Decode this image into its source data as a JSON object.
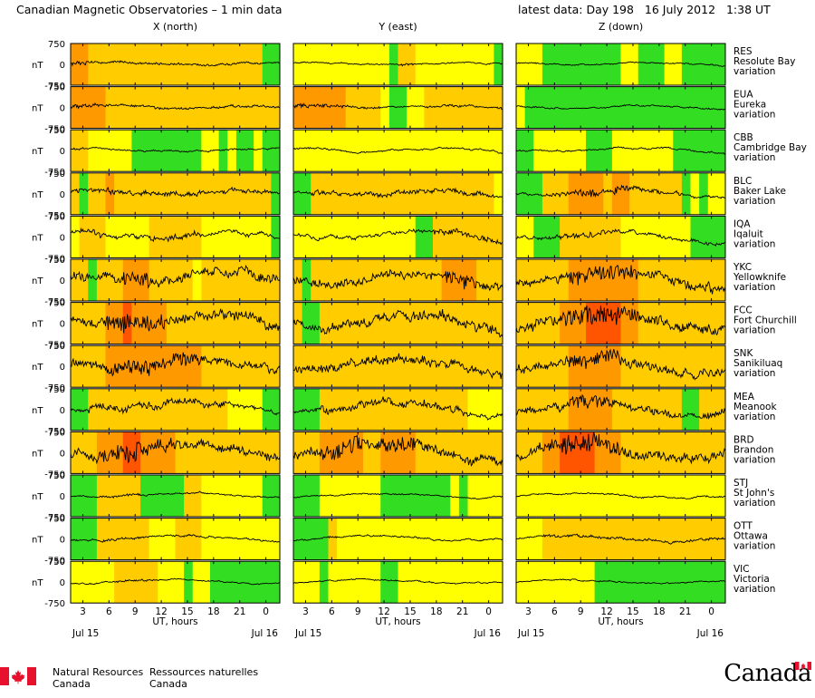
{
  "header": {
    "title": "Canadian Magnetic Observatories – 1 min data",
    "latest": "latest data: Day 198   16 July 2012   1:38 UT"
  },
  "footer": {
    "org_en_line1": "Natural Resources",
    "org_en_line2": "Canada",
    "org_fr_line1": "Ressources naturelles",
    "org_fr_line2": "Canada",
    "wordmark": "Canada"
  },
  "chart_data": {
    "type": "line",
    "columns": [
      {
        "key": "x",
        "label": "X (north)"
      },
      {
        "key": "y",
        "label": "Y (east)"
      },
      {
        "key": "z",
        "label": "Z (down)"
      }
    ],
    "ylabel": "nT",
    "y_ticks": [
      "750",
      "0",
      "-750"
    ],
    "ylim": [
      -750,
      750
    ],
    "xlabel": "UT, hours",
    "x_ticks": [
      "3",
      "6",
      "9",
      "12",
      "15",
      "18",
      "21",
      "0"
    ],
    "x_tick_values": [
      3,
      6,
      9,
      12,
      15,
      18,
      21,
      24
    ],
    "xlim": [
      1.6,
      25.6
    ],
    "date_left": "Jul 15",
    "date_right": "Jul 16",
    "activity_colors": {
      "quiet": "#33dd22",
      "unsettled": "#ffff00",
      "active": "#ffcc00",
      "storm": "#ff9900",
      "major": "#ff5500"
    },
    "stations": [
      {
        "code": "RES",
        "name": "Resolute Bay",
        "label": "variation",
        "amp": 110,
        "activity": {
          "x": "ssaaaaaaaaaaaaaaaaaaaaqq",
          "y": "uuuuuuuuuuuqaauuuuuuuuuq",
          "z": "uuuqqqqqqqqquuqqquuqqqqq"
        }
      },
      {
        "code": "EUA",
        "name": "Eureka",
        "label": "variation",
        "amp": 120,
        "activity": {
          "x": "ssssaaaaaaaaaaaaaaaaaaaa",
          "y": "ssssssaaaauqquuaaaaaaaaa",
          "z": "uqqqqqqqqqqqqqqqqqqqqqqq"
        }
      },
      {
        "code": "CBB",
        "name": "Cambridge Bay",
        "label": "variation",
        "amp": 150,
        "activity": {
          "x": "aauuuuuqqqqqqqquuquqquqq",
          "y": "uuuuuuuuuuuuuuuuuuuuuuuu",
          "z": "qquuuuuuqqquuuuuuuqqqqqq"
        }
      },
      {
        "code": "BLC",
        "name": "Baker Lake",
        "label": "variation",
        "amp": 230,
        "activity": {
          "x": "aqaasaaaaaaaaaaaaaaaaaaq",
          "y": "qqaaaaaaaaaaaaaaaaaaaaau",
          "z": "qqqaaassssassaaaaaaququu"
        }
      },
      {
        "code": "IQA",
        "name": "Iqaluit",
        "label": "variation",
        "amp": 300,
        "activity": {
          "x": "uaaauuuuuaaaaaauuuuuuuuq",
          "y": "uuuuuuuuuuuuuuqqaaaaaaaa",
          "z": "uuqqqaaaaaaauuuuuuuuqqqq"
        }
      },
      {
        "code": "YKC",
        "name": "Yellowknife",
        "label": "variation",
        "amp": 450,
        "activity": {
          "x": "aaqaaasssaaaaauaaaaaaaaa",
          "y": "aqaaaaaaaaaaaaaaassssaaa",
          "z": "aaaaaassssssssaaaaaaaaaa"
        }
      },
      {
        "code": "FCC",
        "name": "Fort Churchill",
        "label": "variation",
        "amp": 500,
        "activity": {
          "x": "aaaassmssssaaaaaaaaaaaaa",
          "y": "aqqaaaaaaaaaaaaaaaaaaaaa",
          "z": "aaaaasssmmmmssaaaaaaaaaa"
        }
      },
      {
        "code": "SNK",
        "name": "Sanikiluaq",
        "label": "variation",
        "amp": 420,
        "activity": {
          "x": "aaaasssssssssssaaaaaaaaa",
          "y": "aaaaaaaaaaaaaaaaaaaaaaaa",
          "z": "aaaaaassssssaaaaaaaaaaaa"
        }
      },
      {
        "code": "MEA",
        "name": "Meanook",
        "label": "variation",
        "amp": 380,
        "activity": {
          "x": "qqaaaaaaaaaaaaaaaauuuuqq",
          "y": "qqqaaaaaaaaaaaaaaaaauuuu",
          "z": "aaaaaasssssaaaaaaaaqqaaa"
        }
      },
      {
        "code": "BRD",
        "name": "Brandon",
        "label": "variation",
        "amp": 460,
        "activity": {
          "x": "aaasssmmssssaaaaaaaaaaaa",
          "y": "aaasssssaassssaaaaaaaaaa",
          "z": "aaassmmmmsssaaaaaaaaaaaa"
        }
      },
      {
        "code": "STJ",
        "name": "St John's",
        "label": "variation",
        "amp": 120,
        "activity": {
          "x": "qqqaaaaaqqqqqaauuuuuuuqq",
          "y": "qqquuuuuuuqqqqqqqququuuu",
          "z": "uuuuuuuuuuuuuuuuuuuuuuuu"
        }
      },
      {
        "code": "OTT",
        "name": "Ottawa",
        "label": "variation",
        "amp": 140,
        "activity": {
          "x": "qqqaaaaaauuuaaauuuuuuuuu",
          "y": "qqqqauuuuuuuuuuuuuuuuuuu",
          "z": "uuuaaaaaaaaaaaaaaaaaaaaa"
        }
      },
      {
        "code": "VIC",
        "name": "Victoria",
        "label": "variation",
        "amp": 110,
        "activity": {
          "x": "uuuuuaaaaauuuquuqqqqqqqq",
          "y": "uuuquuuuuuqquuuuuuuuuuuu",
          "z": "uuuuuuuuuqqqqqqqqqqqqqqq"
        }
      }
    ]
  }
}
